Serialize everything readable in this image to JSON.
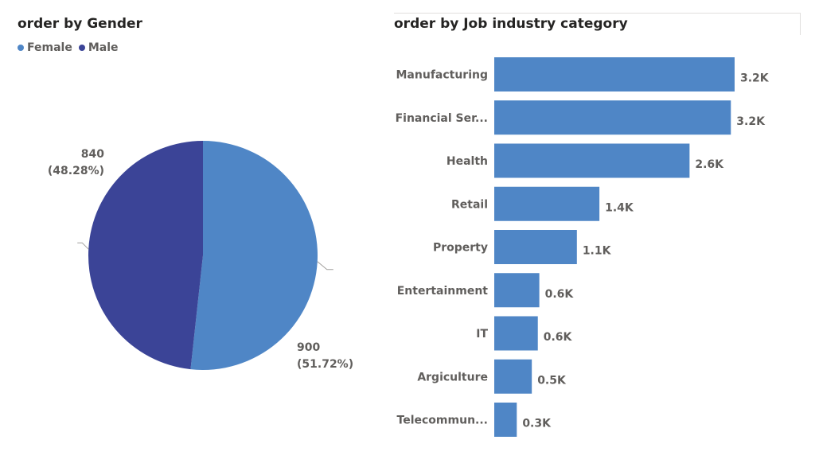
{
  "colors": {
    "female": "#4f86c6",
    "male": "#3b4497",
    "bar": "#4f86c6",
    "text": "#605e5c",
    "title": "#252423"
  },
  "chart_data": [
    {
      "type": "pie",
      "title": "order by Gender",
      "legend_position": "top-left",
      "categories": [
        "Female",
        "Male"
      ],
      "values": [
        900,
        840
      ],
      "data_labels": [
        {
          "value": "900",
          "percent": "(51.72%)"
        },
        {
          "value": "840",
          "percent": "(48.28%)"
        }
      ]
    },
    {
      "type": "bar",
      "orientation": "horizontal",
      "title": "order by Job industry category",
      "categories": [
        "Manufacturing",
        "Financial Ser...",
        "Health",
        "Retail",
        "Property",
        "Entertainment",
        "IT",
        "Argiculture",
        "Telecommun..."
      ],
      "values": [
        3200,
        3150,
        2600,
        1400,
        1100,
        600,
        580,
        500,
        300
      ],
      "data_labels": [
        "3.2K",
        "3.2K",
        "2.6K",
        "1.4K",
        "1.1K",
        "0.6K",
        "0.6K",
        "0.5K",
        "0.3K"
      ],
      "xlabel": "",
      "ylabel": ""
    }
  ]
}
